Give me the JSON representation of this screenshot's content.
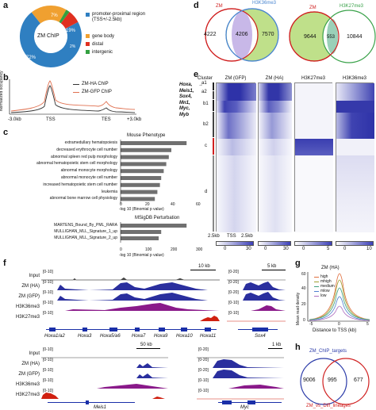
{
  "panels": {
    "a": {
      "label": "a",
      "center_text": "ZM ChIP",
      "slices": [
        {
          "name": "promoter-proximal region (TSS+/-2.5kb)",
          "value": 72,
          "label": "72%",
          "color": "#2f7fc1"
        },
        {
          "name": "gene body",
          "value": 19,
          "label": "19%",
          "color": "#f0a030"
        },
        {
          "name": "distal",
          "value": 7,
          "label": "7%",
          "color": "#e03020"
        },
        {
          "name": "intergenic",
          "value": 2,
          "label": "2%",
          "color": "#33a040"
        }
      ],
      "legend": [
        "promoter-proximal region (TSS+/-2.5kb)",
        "gene body",
        "distal",
        "intergenic"
      ]
    },
    "b": {
      "label": "b",
      "ylabel": "Normalized occupancy",
      "xticks": [
        "-3.0kb",
        "TSS",
        "TES",
        "+3.0kb"
      ],
      "legend": [
        "ZM-HA ChIP",
        "ZM-GFP ChIP"
      ],
      "colors": {
        "ha": "#333333",
        "gfp": "#e07050"
      }
    },
    "c": {
      "label": "c",
      "mouse_title": "Mouse Phenotype",
      "mouse_terms": [
        {
          "term": "extramedullary hematopoiesis",
          "value": 52
        },
        {
          "term": "decreased erythrocyte cell number",
          "value": 40
        },
        {
          "term": "abnormal spleen red pulp morphology",
          "value": 38
        },
        {
          "term": "abnormal hematopoietic stem cell morphology",
          "value": 36
        },
        {
          "term": "abnormal monocyte morphology",
          "value": 34
        },
        {
          "term": "abnormal monocyte cell number",
          "value": 32
        },
        {
          "term": "increased hematopoietic stem cell number",
          "value": 31
        },
        {
          "term": "leukemia",
          "value": 29
        },
        {
          "term": "abnormal bone marrow cell physiology",
          "value": 27
        }
      ],
      "mouse_ticks": [
        "0",
        "20",
        "40",
        "60"
      ],
      "mouse_xlabel": "-log 10 (Binomial p value)",
      "msig_title": "MSigDB Perturbation",
      "msig_terms": [
        {
          "term": "MARTENS_Bound_By_PML_RARA",
          "value": 260
        },
        {
          "term": "MULLIGHAN_MLL_Signature_1_up",
          "value": 160
        },
        {
          "term": "MULLIGHAN_MLL_Signature_2_up",
          "value": 150
        }
      ],
      "msig_ticks": [
        "0",
        "100",
        "200",
        "300"
      ],
      "msig_xlabel": "-log 10 (Binomial p value)"
    },
    "d": {
      "label": "d",
      "venn1": {
        "left": "ZM",
        "right": "H3K36me3",
        "left_only": "4222",
        "both": "4206",
        "right_only": "7570"
      },
      "venn2": {
        "left": "ZM",
        "right": "H3K27me3",
        "left_only": "9644",
        "both": "553",
        "right_only": "10844"
      }
    },
    "e": {
      "label": "e",
      "cluster_header": "Cluster",
      "genes": [
        "Hoxa,",
        "Meis1,",
        "Sox4,",
        "Mn1,",
        "Myc,",
        "Myb"
      ],
      "clusters": [
        "a1",
        "a2",
        "b1",
        "b2",
        "c",
        "d"
      ],
      "columns": [
        "ZM (GFP)",
        "ZM (HA)",
        "H3K27me3",
        "H3K36me3"
      ],
      "axis": [
        "2.5kb",
        "TSS",
        "2.5kb"
      ],
      "colorbars": [
        {
          "min": "0",
          "max": "30"
        },
        {
          "min": "0",
          "max": "30"
        },
        {
          "min": "0",
          "max": "5"
        },
        {
          "min": "0",
          "max": "10"
        }
      ]
    },
    "f": {
      "label": "f",
      "top_left": {
        "scale": "10 kb",
        "tracks": [
          {
            "name": "Input",
            "range": "[0-10]",
            "color": "#444444"
          },
          {
            "name": "ZM (HA)",
            "range": "[0-10]",
            "color": "#2a2f9e"
          },
          {
            "name": "ZM (GFP)",
            "range": "[0-10]",
            "color": "#2a2f9e"
          },
          {
            "name": "H3K36me3",
            "range": "[0-10]",
            "color": "#8a1a8a"
          },
          {
            "name": "H3K27me3",
            "range": "[0-10]",
            "color": "#d02010"
          }
        ],
        "genes": [
          "Hoxa1/a2",
          "Hoxa3",
          "Hoxa5/a6",
          "Hoxa7",
          "Hoxa9",
          "Hoxa10",
          "Hoxa11"
        ]
      },
      "top_right": {
        "scale": "5 kb",
        "gene": "Sox4",
        "ranges": [
          "[0-20]",
          "[0-20]",
          "[0-20]",
          "[0-10]",
          "[0-10]"
        ]
      },
      "bottom_left": {
        "scale": "50 kb",
        "gene": "Meis1",
        "tracks": [
          "Input",
          "ZM (HA)",
          "ZM (GFP)",
          "H3K36me3",
          "H3K27me3"
        ],
        "ranges": [
          "[0-10]",
          "[0-10]",
          "[0-10]",
          "[0-10]",
          "[0-10]"
        ]
      },
      "bottom_right": {
        "scale": "1 kb",
        "gene": "Myc",
        "ranges": [
          "[0-20]",
          "[0-20]",
          "[0-20]",
          "[0-10]",
          "[0-10]"
        ]
      }
    },
    "g": {
      "label": "g",
      "title": "ZM (HA)",
      "ylabel": "Mean read density",
      "xlabel": "Distance to TSS (kb)",
      "xticks": [
        "-5",
        "0",
        "5"
      ],
      "yticks": [
        "0",
        "20",
        "40",
        "60"
      ],
      "legend": [
        {
          "name": "high",
          "color": "#e07040"
        },
        {
          "name": "mhigh",
          "color": "#a0a030"
        },
        {
          "name": "medium",
          "color": "#40a080"
        },
        {
          "name": "mlow",
          "color": "#5080d0"
        },
        {
          "name": "low",
          "color": "#b070c0"
        }
      ]
    },
    "h": {
      "label": "h",
      "top_label": "ZM_ChIP_targets",
      "bottom_label": "ZM_vs_Diff_lineages",
      "left_only": "9006",
      "both": "995",
      "right_only": "677"
    }
  }
}
